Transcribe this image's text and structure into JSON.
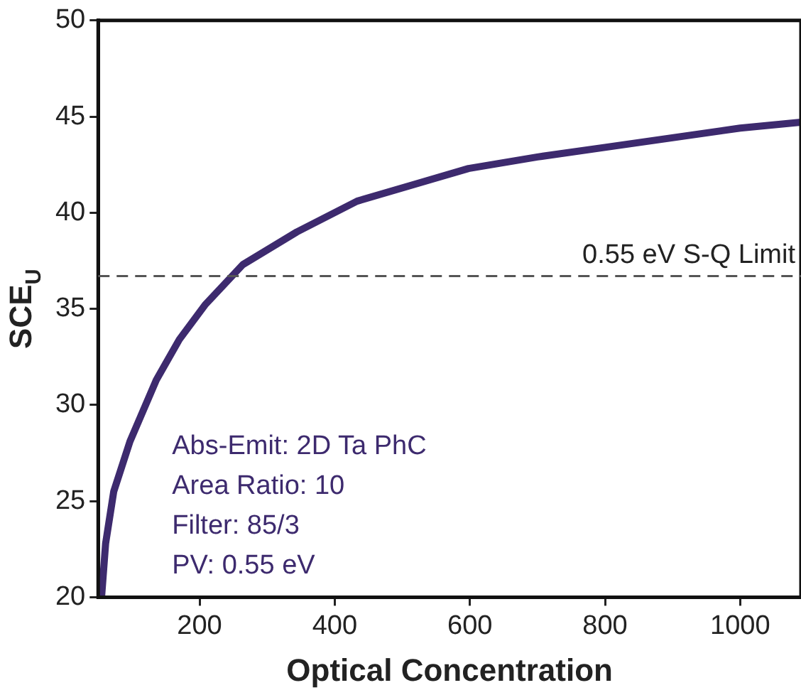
{
  "chart_data": {
    "type": "line",
    "xlabel": "Optical Concentration",
    "ylabel": "SCE$_{U}$",
    "x": [
      55,
      61,
      73,
      97,
      136,
      170,
      208,
      264,
      344,
      433,
      598,
      700,
      800,
      1000,
      1087
    ],
    "series": [
      {
        "color": "#3d2a6e",
        "values": [
          20.0,
          22.8,
          25.5,
          28.1,
          31.3,
          33.4,
          35.2,
          37.3,
          39.0,
          40.6,
          42.3,
          42.9,
          43.4,
          44.4,
          44.7
        ]
      }
    ],
    "xlim": [
      50,
      1090
    ],
    "xticks": [
      200,
      400,
      600,
      800,
      1000
    ],
    "ylim": [
      20,
      50
    ],
    "yticks": [
      20,
      25,
      30,
      35,
      40,
      45,
      50
    ],
    "ref_lines": [
      {
        "axis": "y",
        "value": 36.7,
        "label": "0.55 eV S-Q Limit",
        "color": "#555555",
        "line_style": "dashed"
      }
    ],
    "annotations": [
      "Abs-Emit: 2D Ta PhC",
      "Area Ratio: 10",
      "Filter: 85/3",
      "PV: 0.55 eV"
    ],
    "grid": false,
    "legend": false,
    "marker": "none",
    "line_style": "solid"
  }
}
